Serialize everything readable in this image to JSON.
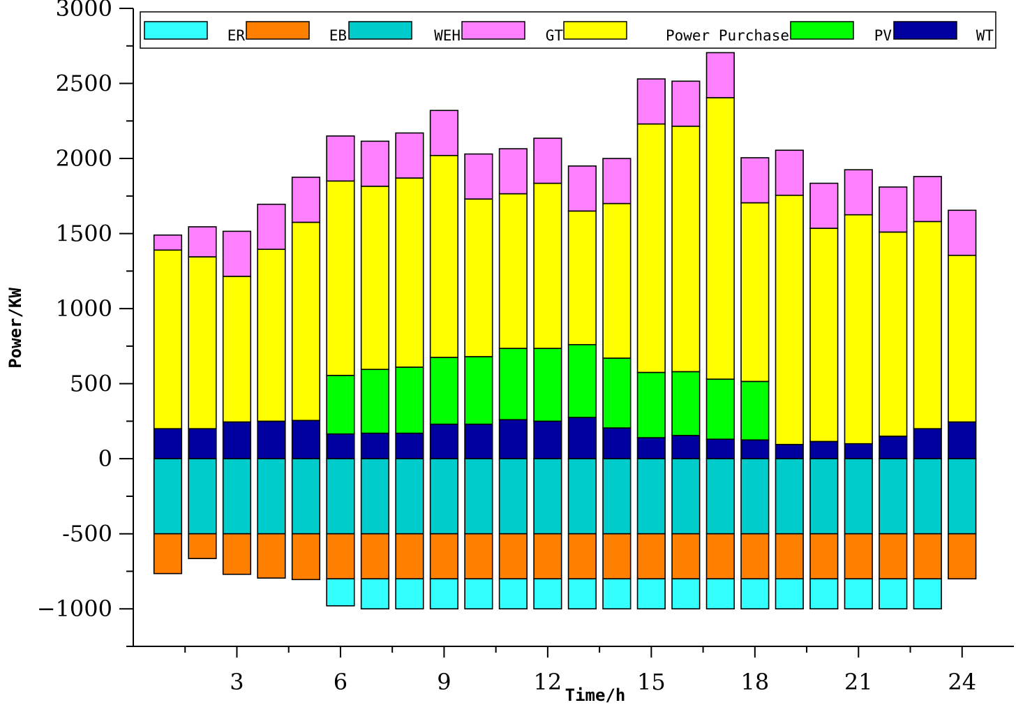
{
  "chart_data": {
    "type": "bar",
    "stacked": true,
    "title": "",
    "xlabel": "Time/h",
    "ylabel": "Power/KW",
    "ylim": [
      -1250,
      3000
    ],
    "yticks": [
      -1000,
      -500,
      0,
      500,
      1000,
      1500,
      2000,
      2500,
      3000
    ],
    "ytick_labels": [
      "−1000",
      "-500",
      "0",
      "500",
      "1000",
      "1500",
      "2000",
      "2500",
      "3000"
    ],
    "xlim": [
      0,
      25.5
    ],
    "xticks": [
      3,
      6,
      9,
      12,
      15,
      18,
      21,
      24
    ],
    "xtick_labels": [
      "3",
      "6",
      "9",
      "12",
      "15",
      "18",
      "21",
      "24"
    ],
    "legend_position": "top",
    "categories": [
      1,
      2,
      3,
      4,
      5,
      6,
      7,
      8,
      9,
      10,
      11,
      12,
      13,
      14,
      15,
      16,
      17,
      18,
      19,
      20,
      21,
      22,
      23,
      24
    ],
    "series": [
      {
        "name": "ER",
        "color": "#33FFFF",
        "stack": "negative",
        "values": [
          0,
          0,
          0,
          0,
          0,
          -180,
          -200,
          -200,
          -200,
          -200,
          -200,
          -200,
          -200,
          -200,
          -200,
          -200,
          -200,
          -200,
          -200,
          -200,
          -200,
          -200,
          -200,
          0
        ]
      },
      {
        "name": "EB",
        "color": "#FF8000",
        "stack": "negative",
        "values": [
          -265,
          -165,
          -270,
          -295,
          -305,
          -300,
          -300,
          -300,
          -300,
          -300,
          -300,
          -300,
          -300,
          -300,
          -300,
          -300,
          -300,
          -300,
          -300,
          -300,
          -300,
          -300,
          -300,
          -300
        ]
      },
      {
        "name": "WEH",
        "color": "#00CCCC",
        "stack": "negative",
        "values": [
          -500,
          -500,
          -500,
          -500,
          -500,
          -500,
          -500,
          -500,
          -500,
          -500,
          -500,
          -500,
          -500,
          -500,
          -500,
          -500,
          -500,
          -500,
          -500,
          -500,
          -500,
          -500,
          -500,
          -500
        ]
      },
      {
        "name": "GT",
        "color": "#FF80FF",
        "stack": "positive",
        "values": [
          100,
          200,
          300,
          300,
          300,
          300,
          300,
          300,
          300,
          300,
          300,
          300,
          300,
          300,
          300,
          300,
          300,
          300,
          300,
          300,
          300,
          300,
          300,
          300
        ]
      },
      {
        "name": "Power Purchase",
        "color": "#FFFF00",
        "stack": "positive",
        "values": [
          1190,
          1145,
          970,
          1145,
          1320,
          1295,
          1220,
          1260,
          1345,
          1050,
          1030,
          1100,
          890,
          1030,
          1655,
          1635,
          1875,
          1190,
          1660,
          1420,
          1525,
          1360,
          1380,
          1110
        ]
      },
      {
        "name": "PV",
        "color": "#00FF00",
        "stack": "positive",
        "values": [
          0,
          0,
          0,
          0,
          0,
          390,
          425,
          440,
          445,
          450,
          475,
          485,
          485,
          465,
          435,
          425,
          400,
          390,
          0,
          0,
          0,
          0,
          0,
          0
        ]
      },
      {
        "name": "WT",
        "color": "#0000A0",
        "stack": "positive",
        "values": [
          200,
          200,
          245,
          250,
          255,
          165,
          170,
          170,
          230,
          230,
          260,
          250,
          275,
          205,
          140,
          155,
          130,
          125,
          95,
          115,
          100,
          150,
          200,
          245
        ]
      }
    ]
  }
}
